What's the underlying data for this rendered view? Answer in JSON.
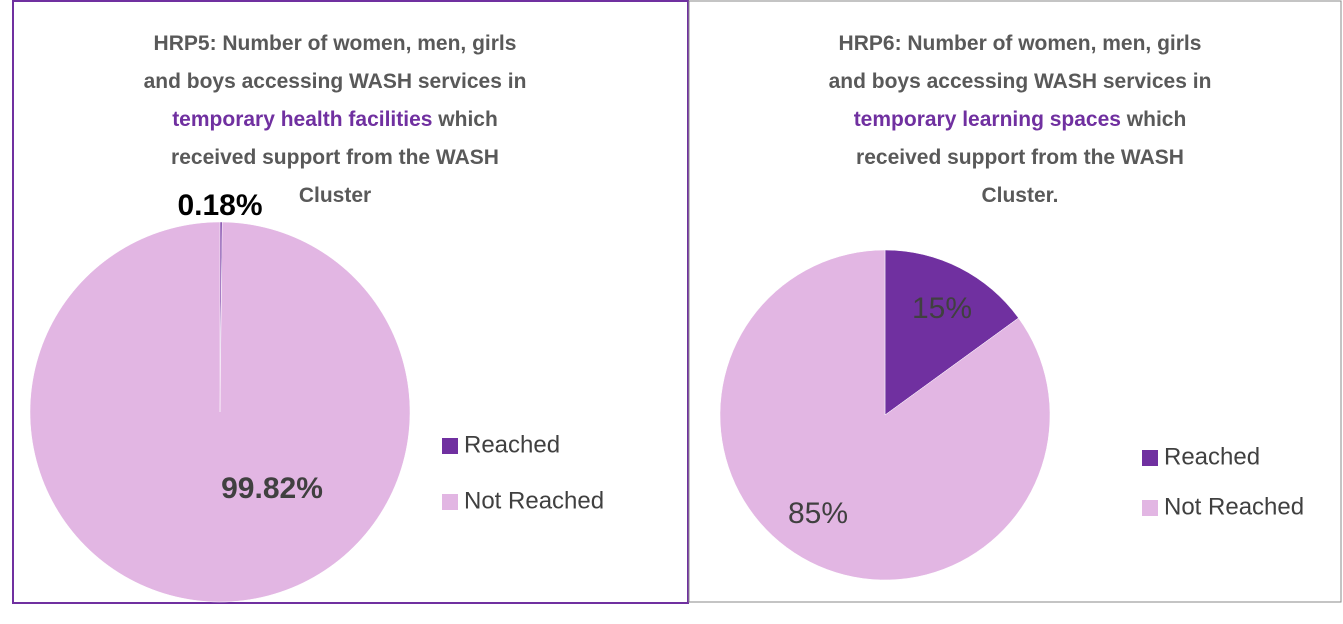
{
  "chart_data": [
    {
      "type": "pie",
      "title": [
        [
          {
            "text": "HRP5: Number of women, men, girls",
            "color": "#595959"
          }
        ],
        [
          {
            "text": "and boys accessing WASH services in",
            "color": "#595959"
          }
        ],
        [
          {
            "text": "temporary health facilities",
            "color": "#7030a0"
          },
          {
            "text": " which",
            "color": "#595959"
          }
        ],
        [
          {
            "text": "received support from the WASH",
            "color": "#595959"
          }
        ],
        [
          {
            "text": "Cluster",
            "color": "#595959"
          }
        ]
      ],
      "categories": [
        "Reached",
        "Not Reached"
      ],
      "values": [
        0.18,
        99.82
      ],
      "value_labels": [
        "0.18%",
        "99.82%"
      ],
      "colors": [
        "#7030a0",
        "#e2b6e3"
      ],
      "label_colors": [
        "#000000",
        "#404040"
      ],
      "label_bold": true,
      "legend": "right"
    },
    {
      "type": "pie",
      "title": [
        [
          {
            "text": "HRP6: Number of women, men, girls",
            "color": "#595959"
          }
        ],
        [
          {
            "text": "and boys accessing WASH services in",
            "color": "#595959"
          }
        ],
        [
          {
            "text": "temporary learning spaces",
            "color": "#7030a0"
          },
          {
            "text": " which",
            "color": "#595959"
          }
        ],
        [
          {
            "text": "received support from the WASH",
            "color": "#595959"
          }
        ],
        [
          {
            "text": "Cluster.",
            "color": "#595959"
          }
        ]
      ],
      "categories": [
        "Reached",
        "Not Reached"
      ],
      "values": [
        15,
        85
      ],
      "value_labels": [
        "15%",
        "85%"
      ],
      "colors": [
        "#7030a0",
        "#e2b6e3"
      ],
      "label_colors": [
        "#404040",
        "#404040"
      ],
      "label_bold": false,
      "legend": "right"
    }
  ]
}
